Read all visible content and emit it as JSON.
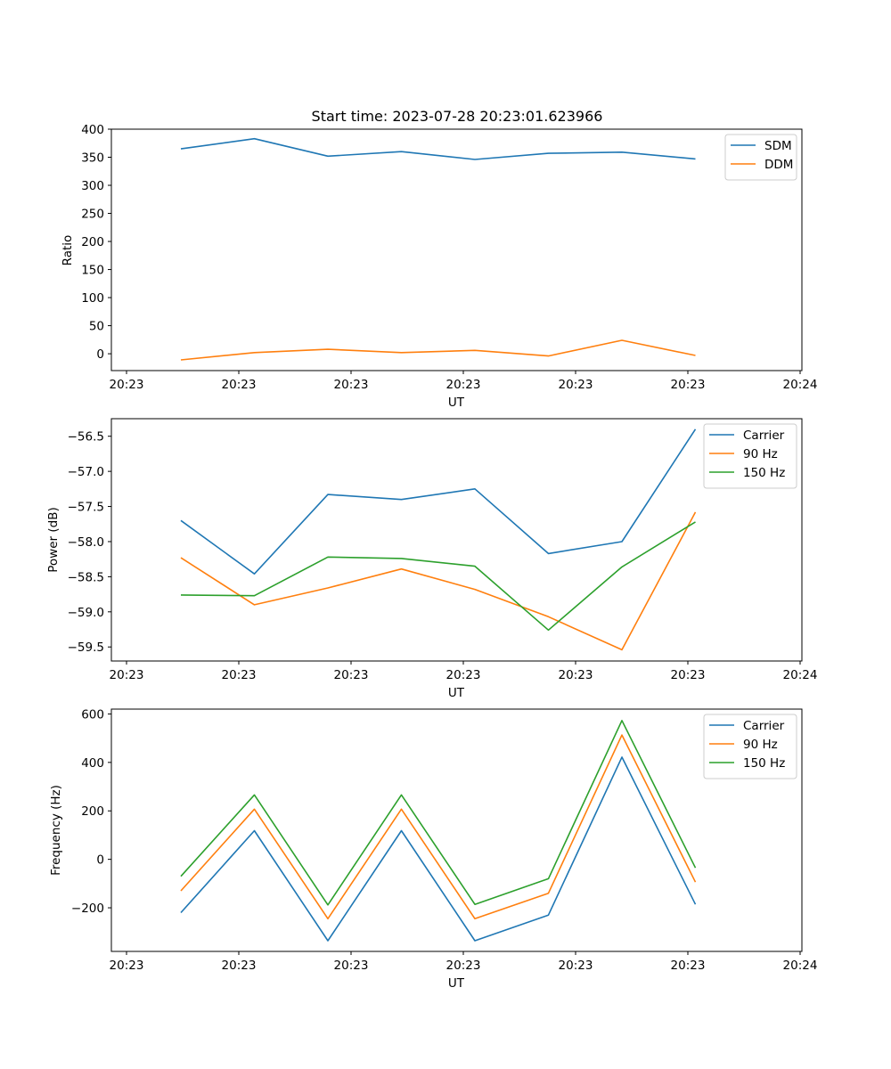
{
  "chart_data": [
    {
      "type": "line",
      "title": "Start time: 2023-07-28 20:23:01.623966",
      "xlabel": "UT",
      "ylabel": "Ratio",
      "x_tick_labels": [
        "20:23",
        "20:23",
        "20:23",
        "20:23",
        "20:23",
        "20:23",
        "20:23"
      ],
      "x_end_tick_label": "20:24",
      "ylim": [
        -30,
        400
      ],
      "yticks": [
        0,
        50,
        100,
        150,
        200,
        250,
        300,
        350,
        400
      ],
      "ytick_labels": [
        "0",
        "50",
        "100",
        "150",
        "200",
        "250",
        "300",
        "350",
        "400"
      ],
      "legend": "top-right",
      "series": [
        {
          "name": "SDM",
          "color": "#1f77b4",
          "values": [
            365,
            383,
            352,
            360,
            346,
            357,
            359,
            347
          ]
        },
        {
          "name": "DDM",
          "color": "#ff7f0e",
          "values": [
            -11,
            2,
            8,
            2,
            6,
            -4,
            24,
            -3
          ]
        }
      ]
    },
    {
      "type": "line",
      "title": "",
      "xlabel": "UT",
      "ylabel": "Power (dB)",
      "x_tick_labels": [
        "20:23",
        "20:23",
        "20:23",
        "20:23",
        "20:23",
        "20:23",
        "20:23"
      ],
      "x_end_tick_label": "20:24",
      "ylim": [
        -59.7,
        -56.25
      ],
      "yticks": [
        -59.5,
        -59.0,
        -58.5,
        -58.0,
        -57.5,
        -57.0,
        -56.5
      ],
      "ytick_labels": [
        "−59.5",
        "−59.0",
        "−58.5",
        "−58.0",
        "−57.5",
        "−57.0",
        "−56.5"
      ],
      "legend": "top-right",
      "series": [
        {
          "name": "Carrier",
          "color": "#1f77b4",
          "values": [
            -57.7,
            -58.46,
            -57.33,
            -57.4,
            -57.25,
            -58.17,
            -58.0,
            -56.4
          ]
        },
        {
          "name": "90 Hz",
          "color": "#ff7f0e",
          "values": [
            -58.23,
            -58.9,
            -58.66,
            -58.39,
            -58.68,
            -59.07,
            -59.54,
            -57.58
          ]
        },
        {
          "name": "150 Hz",
          "color": "#2ca02c",
          "values": [
            -58.76,
            -58.77,
            -58.22,
            -58.24,
            -58.35,
            -59.26,
            -58.36,
            -57.72
          ]
        }
      ]
    },
    {
      "type": "line",
      "title": "",
      "xlabel": "UT",
      "ylabel": "Frequency (Hz)",
      "x_tick_labels": [
        "20:23",
        "20:23",
        "20:23",
        "20:23",
        "20:23",
        "20:23",
        "20:23"
      ],
      "x_end_tick_label": "20:24",
      "ylim": [
        -380,
        620
      ],
      "yticks": [
        -200,
        0,
        200,
        400,
        600
      ],
      "ytick_labels": [
        "−200",
        "0",
        "200",
        "400",
        "600"
      ],
      "legend": "top-right",
      "series": [
        {
          "name": "Carrier",
          "color": "#1f77b4",
          "values": [
            -220,
            118,
            -336,
            118,
            -336,
            -230,
            422,
            -186
          ]
        },
        {
          "name": "90 Hz",
          "color": "#ff7f0e",
          "values": [
            -130,
            207,
            -245,
            207,
            -245,
            -140,
            513,
            -94
          ]
        },
        {
          "name": "150 Hz",
          "color": "#2ca02c",
          "values": [
            -70,
            266,
            -188,
            266,
            -186,
            -80,
            573,
            -35
          ]
        }
      ]
    }
  ]
}
